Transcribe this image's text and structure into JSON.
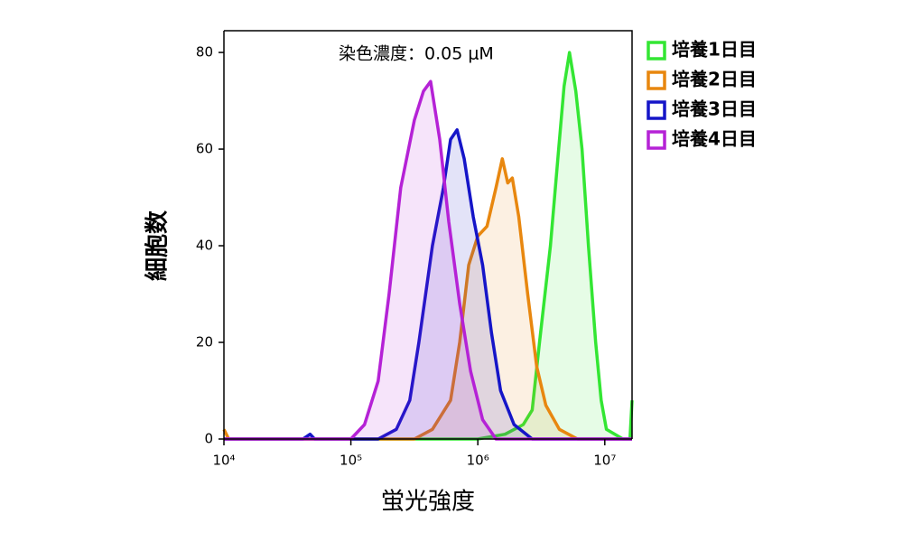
{
  "chart_data": {
    "type": "line",
    "annotation": "染色濃度：0.05 μM",
    "x_label": "蛍光強度",
    "y_label": "細胞数",
    "xscale": "log",
    "xlim": [
      10000,
      16400000
    ],
    "ylim": [
      0,
      84.5
    ],
    "xticks": [
      {
        "value": 10000,
        "label": "10⁴"
      },
      {
        "value": 100000,
        "label": "10⁵"
      },
      {
        "value": 1000000,
        "label": "10⁶"
      },
      {
        "value": 10000000,
        "label": "10⁷"
      }
    ],
    "yticks": [
      0,
      20,
      40,
      60,
      80
    ],
    "series": [
      {
        "name": "培養1日目",
        "color": "#33e633",
        "x": [
          10000,
          1000000,
          1640000,
          2280000,
          2680000,
          3060000,
          3730000,
          4330000,
          4780000,
          5270000,
          5910000,
          6620000,
          7440000,
          8480000,
          9360000,
          10300000,
          13900000,
          15800000,
          16400000
        ],
        "values": [
          0,
          0,
          1,
          3,
          6,
          20,
          40,
          60,
          73,
          80,
          72,
          60,
          40,
          20,
          8,
          2,
          0,
          0,
          8
        ]
      },
      {
        "name": "培養2日目",
        "color": "#e8870f",
        "x": [
          10000,
          10900,
          316000,
          439000,
          610000,
          720000,
          848000,
          1000000,
          1180000,
          1390000,
          1560000,
          1720000,
          1870000,
          2100000,
          2470000,
          2910000,
          3430000,
          4390000,
          6100000,
          16400000
        ],
        "values": [
          2,
          0,
          0,
          2,
          8,
          20,
          36,
          42,
          44,
          52,
          58,
          53,
          54,
          46,
          30,
          15,
          7,
          2,
          0,
          0
        ]
      },
      {
        "name": "培養3日目",
        "color": "#1515c8",
        "x": [
          10000,
          42000,
          47700,
          51800,
          164000,
          228000,
          291000,
          343000,
          439000,
          536000,
          610000,
          686000,
          781000,
          920000,
          1090000,
          1280000,
          1510000,
          1930000,
          2680000,
          16400000
        ],
        "values": [
          0,
          0,
          1,
          0,
          0,
          2,
          8,
          20,
          40,
          52,
          62,
          64,
          58,
          46,
          36,
          22,
          10,
          3,
          0,
          0
        ]
      },
      {
        "name": "培養4日目",
        "color": "#b522d6",
        "x": [
          10000,
          100000,
          128000,
          164000,
          200000,
          247000,
          316000,
          373000,
          425000,
          501000,
          590000,
          720000,
          877000,
          1090000,
          1390000,
          16400000
        ],
        "values": [
          0,
          0,
          3,
          12,
          30,
          52,
          66,
          72,
          74,
          62,
          45,
          28,
          14,
          4,
          0,
          0
        ]
      }
    ]
  }
}
